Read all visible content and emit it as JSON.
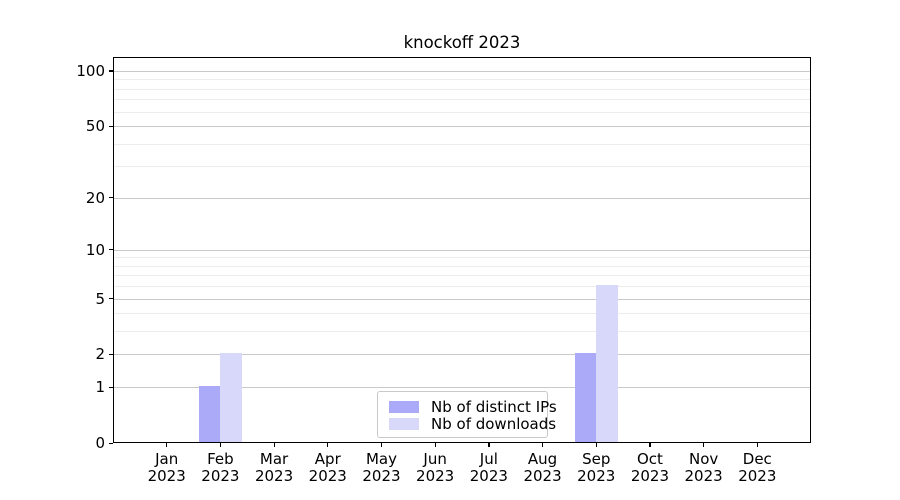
{
  "chart_data": {
    "type": "bar",
    "title": "knockoff 2023",
    "x_categories": [
      "Jan",
      "Feb",
      "Mar",
      "Apr",
      "May",
      "Jun",
      "Jul",
      "Aug",
      "Sep",
      "Oct",
      "Nov",
      "Dec"
    ],
    "x_year": "2023",
    "series": [
      {
        "name": "Nb of distinct IPs",
        "color": "#aaaaf8",
        "values": [
          0,
          1,
          0,
          0,
          0,
          0,
          0,
          0,
          2,
          0,
          0,
          0
        ]
      },
      {
        "name": "Nb of downloads",
        "color": "#d8d8fa",
        "values": [
          0,
          2,
          0,
          0,
          0,
          0,
          0,
          0,
          6,
          0,
          0,
          0
        ]
      }
    ],
    "y_scale": "log1p",
    "y_major_ticks": [
      0,
      1,
      2,
      5,
      10,
      20,
      50,
      100
    ],
    "y_minor_gridlines": [
      3,
      4,
      6,
      7,
      8,
      9,
      30,
      40,
      60,
      70,
      80,
      90
    ],
    "grid": true,
    "legend_position": "lower-center",
    "colors": {
      "major_grid": "#c9c9c9",
      "minor_grid": "#ececec",
      "spine": "#000000",
      "text": "#000000",
      "background": "#ffffff"
    }
  }
}
